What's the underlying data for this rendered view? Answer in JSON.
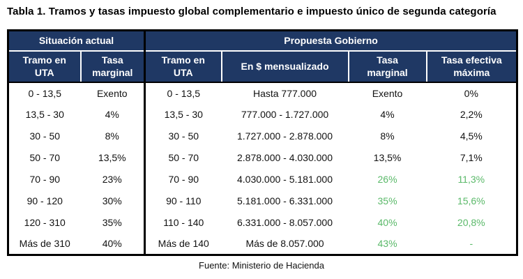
{
  "title": "Tabla 1. Tramos y tasas impuesto global complementario e impuesto único de segunda categoría",
  "footer": {
    "source": "Fuente: Ministerio de Hacienda"
  },
  "colors": {
    "header_bg": "#1F3864",
    "header_text": "#FFFFFF",
    "green_accent": "#5AB969",
    "border": "#000000"
  },
  "table": {
    "groups": [
      {
        "label": "Situación actual",
        "colspan": 2
      },
      {
        "label": "Propuesta Gobierno",
        "colspan": 4
      }
    ],
    "columns": [
      {
        "key": "tramo-uta-actual",
        "label": "Tramo en\nUTA"
      },
      {
        "key": "tasa-marginal-actual",
        "label": "Tasa\nmarginal"
      },
      {
        "key": "tramo-uta-propuesta",
        "label": "Tramo en\nUTA"
      },
      {
        "key": "monto-mensualizado",
        "label": "En $ mensualizado"
      },
      {
        "key": "tasa-marginal-propuesta",
        "label": "Tasa\nmarginal"
      },
      {
        "key": "tasa-efectiva-maxima",
        "label": "Tasa efectiva\nmáxima"
      }
    ],
    "rows": [
      {
        "cells": [
          "0 - 13,5",
          "Exento",
          "0 - 13,5",
          "Hasta 777.000",
          "Exento",
          "0%"
        ],
        "green": []
      },
      {
        "cells": [
          "13,5 - 30",
          "4%",
          "13,5 - 30",
          "777.000 - 1.727.000",
          "4%",
          "2,2%"
        ],
        "green": []
      },
      {
        "cells": [
          "30 - 50",
          "8%",
          "30 - 50",
          "1.727.000 - 2.878.000",
          "8%",
          "4,5%"
        ],
        "green": []
      },
      {
        "cells": [
          "50 - 70",
          "13,5%",
          "50 - 70",
          "2.878.000 - 4.030.000",
          "13,5%",
          "7,1%"
        ],
        "green": []
      },
      {
        "cells": [
          "70 - 90",
          "23%",
          "70 - 90",
          "4.030.000 - 5.181.000",
          "26%",
          "11,3%"
        ],
        "green": [
          4,
          5
        ]
      },
      {
        "cells": [
          "90 - 120",
          "30%",
          "90 - 110",
          "5.181.000 - 6.331.000",
          "35%",
          "15,6%"
        ],
        "green": [
          4,
          5
        ]
      },
      {
        "cells": [
          "120 - 310",
          "35%",
          "110 - 140",
          "6.331.000 - 8.057.000",
          "40%",
          "20,8%"
        ],
        "green": [
          4,
          5
        ]
      },
      {
        "cells": [
          "Más de 310",
          "40%",
          "Más de 140",
          "Más de 8.057.000",
          "43%",
          "-"
        ],
        "green": [
          4,
          5
        ]
      }
    ]
  }
}
